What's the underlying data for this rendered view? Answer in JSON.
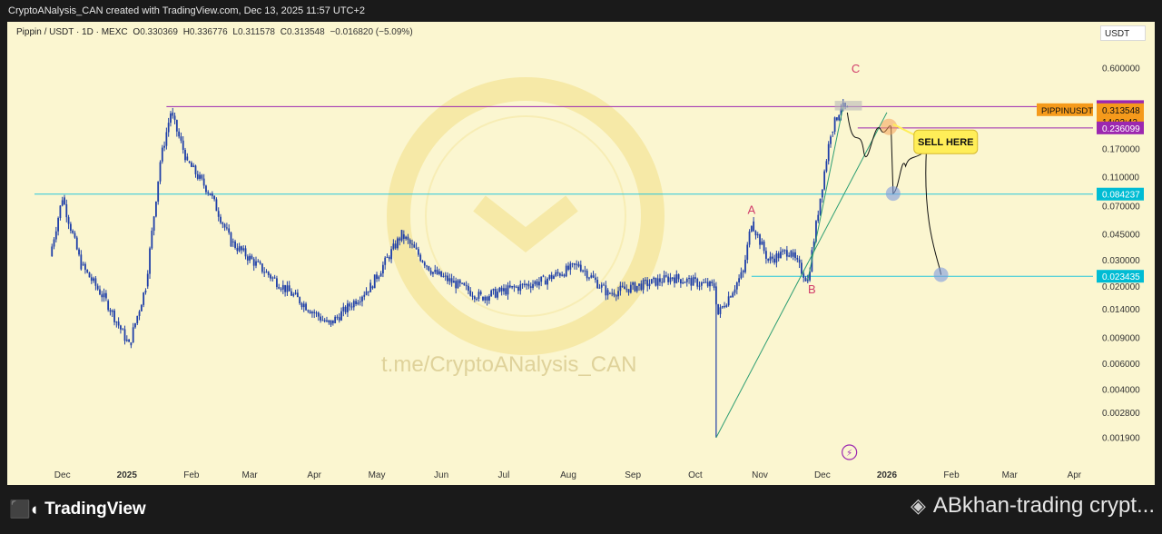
{
  "header": {
    "credit": "CryptoANalysis_CAN created with TradingView.com, Dec 13, 2025 11:57 UTC+2"
  },
  "legend": {
    "symbol": "Pippin / USDT · 1D · MEXC",
    "open_label": "O",
    "open": "0.330369",
    "high_label": "H",
    "high": "0.336776",
    "low_label": "L",
    "low": "0.311578",
    "close_label": "C",
    "close": "0.313548",
    "change": "−0.016820 (−5.09%)"
  },
  "axis_currency": "USDT",
  "watermark": {
    "text": "t.me/CryptoANalysis_CAN",
    "ring_text": "t.me/CryptoANalysis_CAN"
  },
  "footer": {
    "brand": "TradingView",
    "user": "ABkhan-trading crypt..."
  },
  "annotations": {
    "wave_a": "A",
    "wave_b": "B",
    "wave_c": "C",
    "sell_callout": "SELL HERE"
  },
  "price_labels": {
    "top_line": "0.328961",
    "symbol_tag": "PIPPINUSDT",
    "last_price": "0.313548",
    "countdown": "14:02:42",
    "resistance": "0.236099",
    "mid_support": "0.084237",
    "low_support": "0.023435"
  },
  "colors": {
    "background": "#fbf6d0",
    "candle": "#1f3fa8",
    "top_line": "#9c27b0",
    "support_line": "#26c6da",
    "trend_line": "#2e9e73",
    "wave_label": "#d13b6a",
    "callout_bg": "#ffee58",
    "tag_orange": "#f59a1b",
    "tag_purple": "#9c27b0",
    "tag_cyan": "#00bcd4"
  },
  "chart_data": {
    "type": "candlestick",
    "scale": "log",
    "x_ticks": [
      "Dec",
      "2025",
      "Feb",
      "Mar",
      "Apr",
      "May",
      "Jun",
      "Jul",
      "Aug",
      "Sep",
      "Oct",
      "Nov",
      "Dec",
      "2026",
      "Feb",
      "Mar",
      "Apr"
    ],
    "y_ticks": [
      "0.600000",
      "0.250000",
      "0.170000",
      "0.110000",
      "0.070000",
      "0.045000",
      "0.030000",
      "0.020000",
      "0.014000",
      "0.009000",
      "0.006000",
      "0.004000",
      "0.002800",
      "0.001900"
    ],
    "ylim": [
      0.0016,
      0.7
    ],
    "close_path": [
      {
        "x": "2024-11-25",
        "y": 0.032
      },
      {
        "x": "2024-12-01",
        "y": 0.08
      },
      {
        "x": "2024-12-10",
        "y": 0.028
      },
      {
        "x": "2024-12-22",
        "y": 0.016
      },
      {
        "x": "2025-01-02",
        "y": 0.008
      },
      {
        "x": "2025-01-10",
        "y": 0.02
      },
      {
        "x": "2025-01-17",
        "y": 0.14
      },
      {
        "x": "2025-01-22",
        "y": 0.3
      },
      {
        "x": "2025-01-30",
        "y": 0.14
      },
      {
        "x": "2025-02-10",
        "y": 0.085
      },
      {
        "x": "2025-02-20",
        "y": 0.04
      },
      {
        "x": "2025-03-10",
        "y": 0.024
      },
      {
        "x": "2025-04-08",
        "y": 0.011
      },
      {
        "x": "2025-04-28",
        "y": 0.02
      },
      {
        "x": "2025-05-13",
        "y": 0.045
      },
      {
        "x": "2025-05-28",
        "y": 0.025
      },
      {
        "x": "2025-06-20",
        "y": 0.017
      },
      {
        "x": "2025-07-20",
        "y": 0.022
      },
      {
        "x": "2025-08-06",
        "y": 0.028
      },
      {
        "x": "2025-08-20",
        "y": 0.018
      },
      {
        "x": "2025-09-20",
        "y": 0.023
      },
      {
        "x": "2025-10-10",
        "y": 0.02
      },
      {
        "x": "2025-10-12",
        "y": 0.013
      },
      {
        "x": "2025-10-24",
        "y": 0.025
      },
      {
        "x": "2025-10-28",
        "y": 0.055
      },
      {
        "x": "2025-11-05",
        "y": 0.03
      },
      {
        "x": "2025-11-15",
        "y": 0.035
      },
      {
        "x": "2025-11-24",
        "y": 0.022
      },
      {
        "x": "2025-11-30",
        "y": 0.08
      },
      {
        "x": "2025-12-05",
        "y": 0.22
      },
      {
        "x": "2025-12-10",
        "y": 0.33
      },
      {
        "x": "2025-12-13",
        "y": 0.3135
      }
    ],
    "projection": [
      {
        "x": "2025-12-15",
        "y": 0.24
      },
      {
        "x": "2025-12-24",
        "y": 0.085
      },
      {
        "x": "2026-01-01",
        "y": 0.14
      },
      {
        "x": "2026-01-20",
        "y": 0.023
      }
    ],
    "horizontal_levels": [
      0.328961,
      0.236099,
      0.084237,
      0.023435
    ]
  }
}
